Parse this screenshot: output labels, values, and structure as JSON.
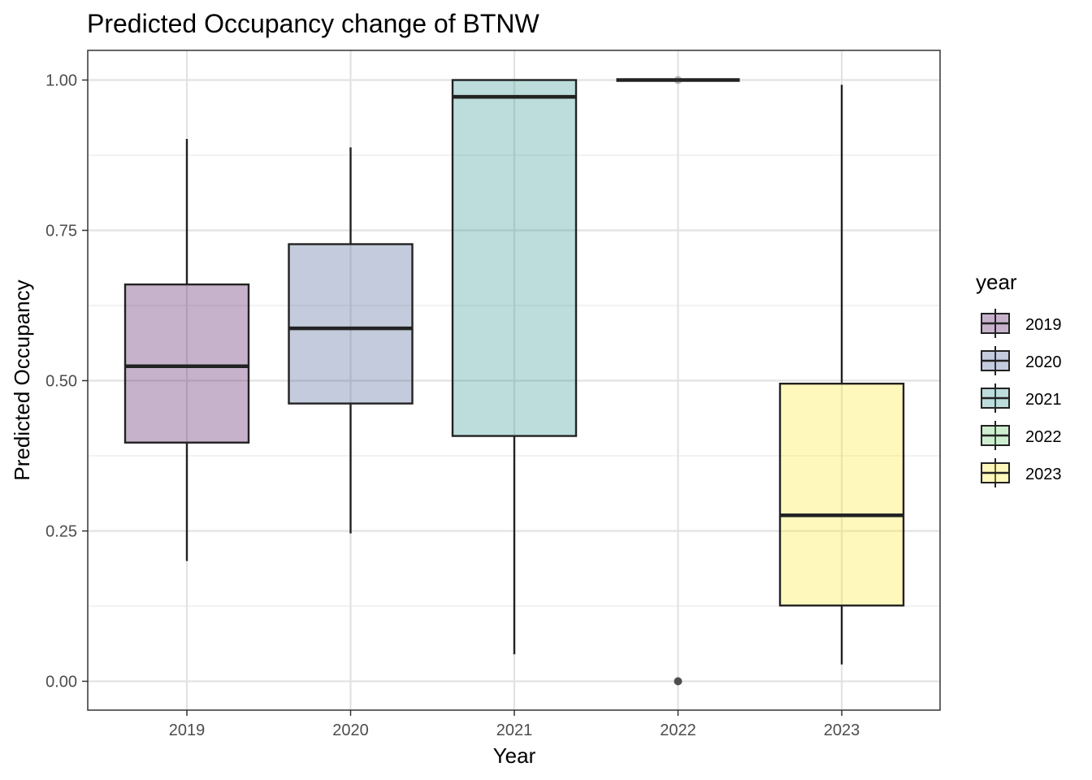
{
  "chart_data": {
    "type": "boxplot",
    "title": "Predicted Occupancy change of BTNW",
    "xlabel": "Year",
    "ylabel": "Predicted Occupancy",
    "categories": [
      "2019",
      "2020",
      "2021",
      "2022",
      "2023"
    ],
    "ylim": [
      -0.05,
      1.05
    ],
    "yticks": [
      0.0,
      0.25,
      0.5,
      0.75,
      1.0
    ],
    "ytick_labels": [
      "0.00",
      "0.25",
      "0.50",
      "0.75",
      "1.00"
    ],
    "grid": true,
    "legend": {
      "title": "year",
      "position": "right",
      "entries": [
        "2019",
        "2020",
        "2021",
        "2022",
        "2023"
      ]
    },
    "boxes": [
      {
        "category": "2019",
        "whisker_low": 0.2,
        "q1": 0.397,
        "median": 0.524,
        "q3": 0.66,
        "whisker_high": 0.902,
        "color": "#440154",
        "outliers": []
      },
      {
        "category": "2020",
        "whisker_low": 0.246,
        "q1": 0.462,
        "median": 0.587,
        "q3": 0.727,
        "whisker_high": 0.888,
        "color": "#3B528B",
        "outliers": []
      },
      {
        "category": "2021",
        "whisker_low": 0.045,
        "q1": 0.408,
        "median": 0.972,
        "q3": 1.0,
        "whisker_high": 1.0,
        "color": "#21908C",
        "outliers": []
      },
      {
        "category": "2022",
        "whisker_low": 1.0,
        "q1": 1.0,
        "median": 1.0,
        "q3": 1.0,
        "whisker_high": 1.0,
        "color": "#5DC863",
        "outliers": [
          0.0
        ]
      },
      {
        "category": "2023",
        "whisker_low": 0.028,
        "q1": 0.126,
        "median": 0.276,
        "q3": 0.495,
        "whisker_high": 0.992,
        "color": "#FDE725",
        "outliers": []
      }
    ]
  }
}
